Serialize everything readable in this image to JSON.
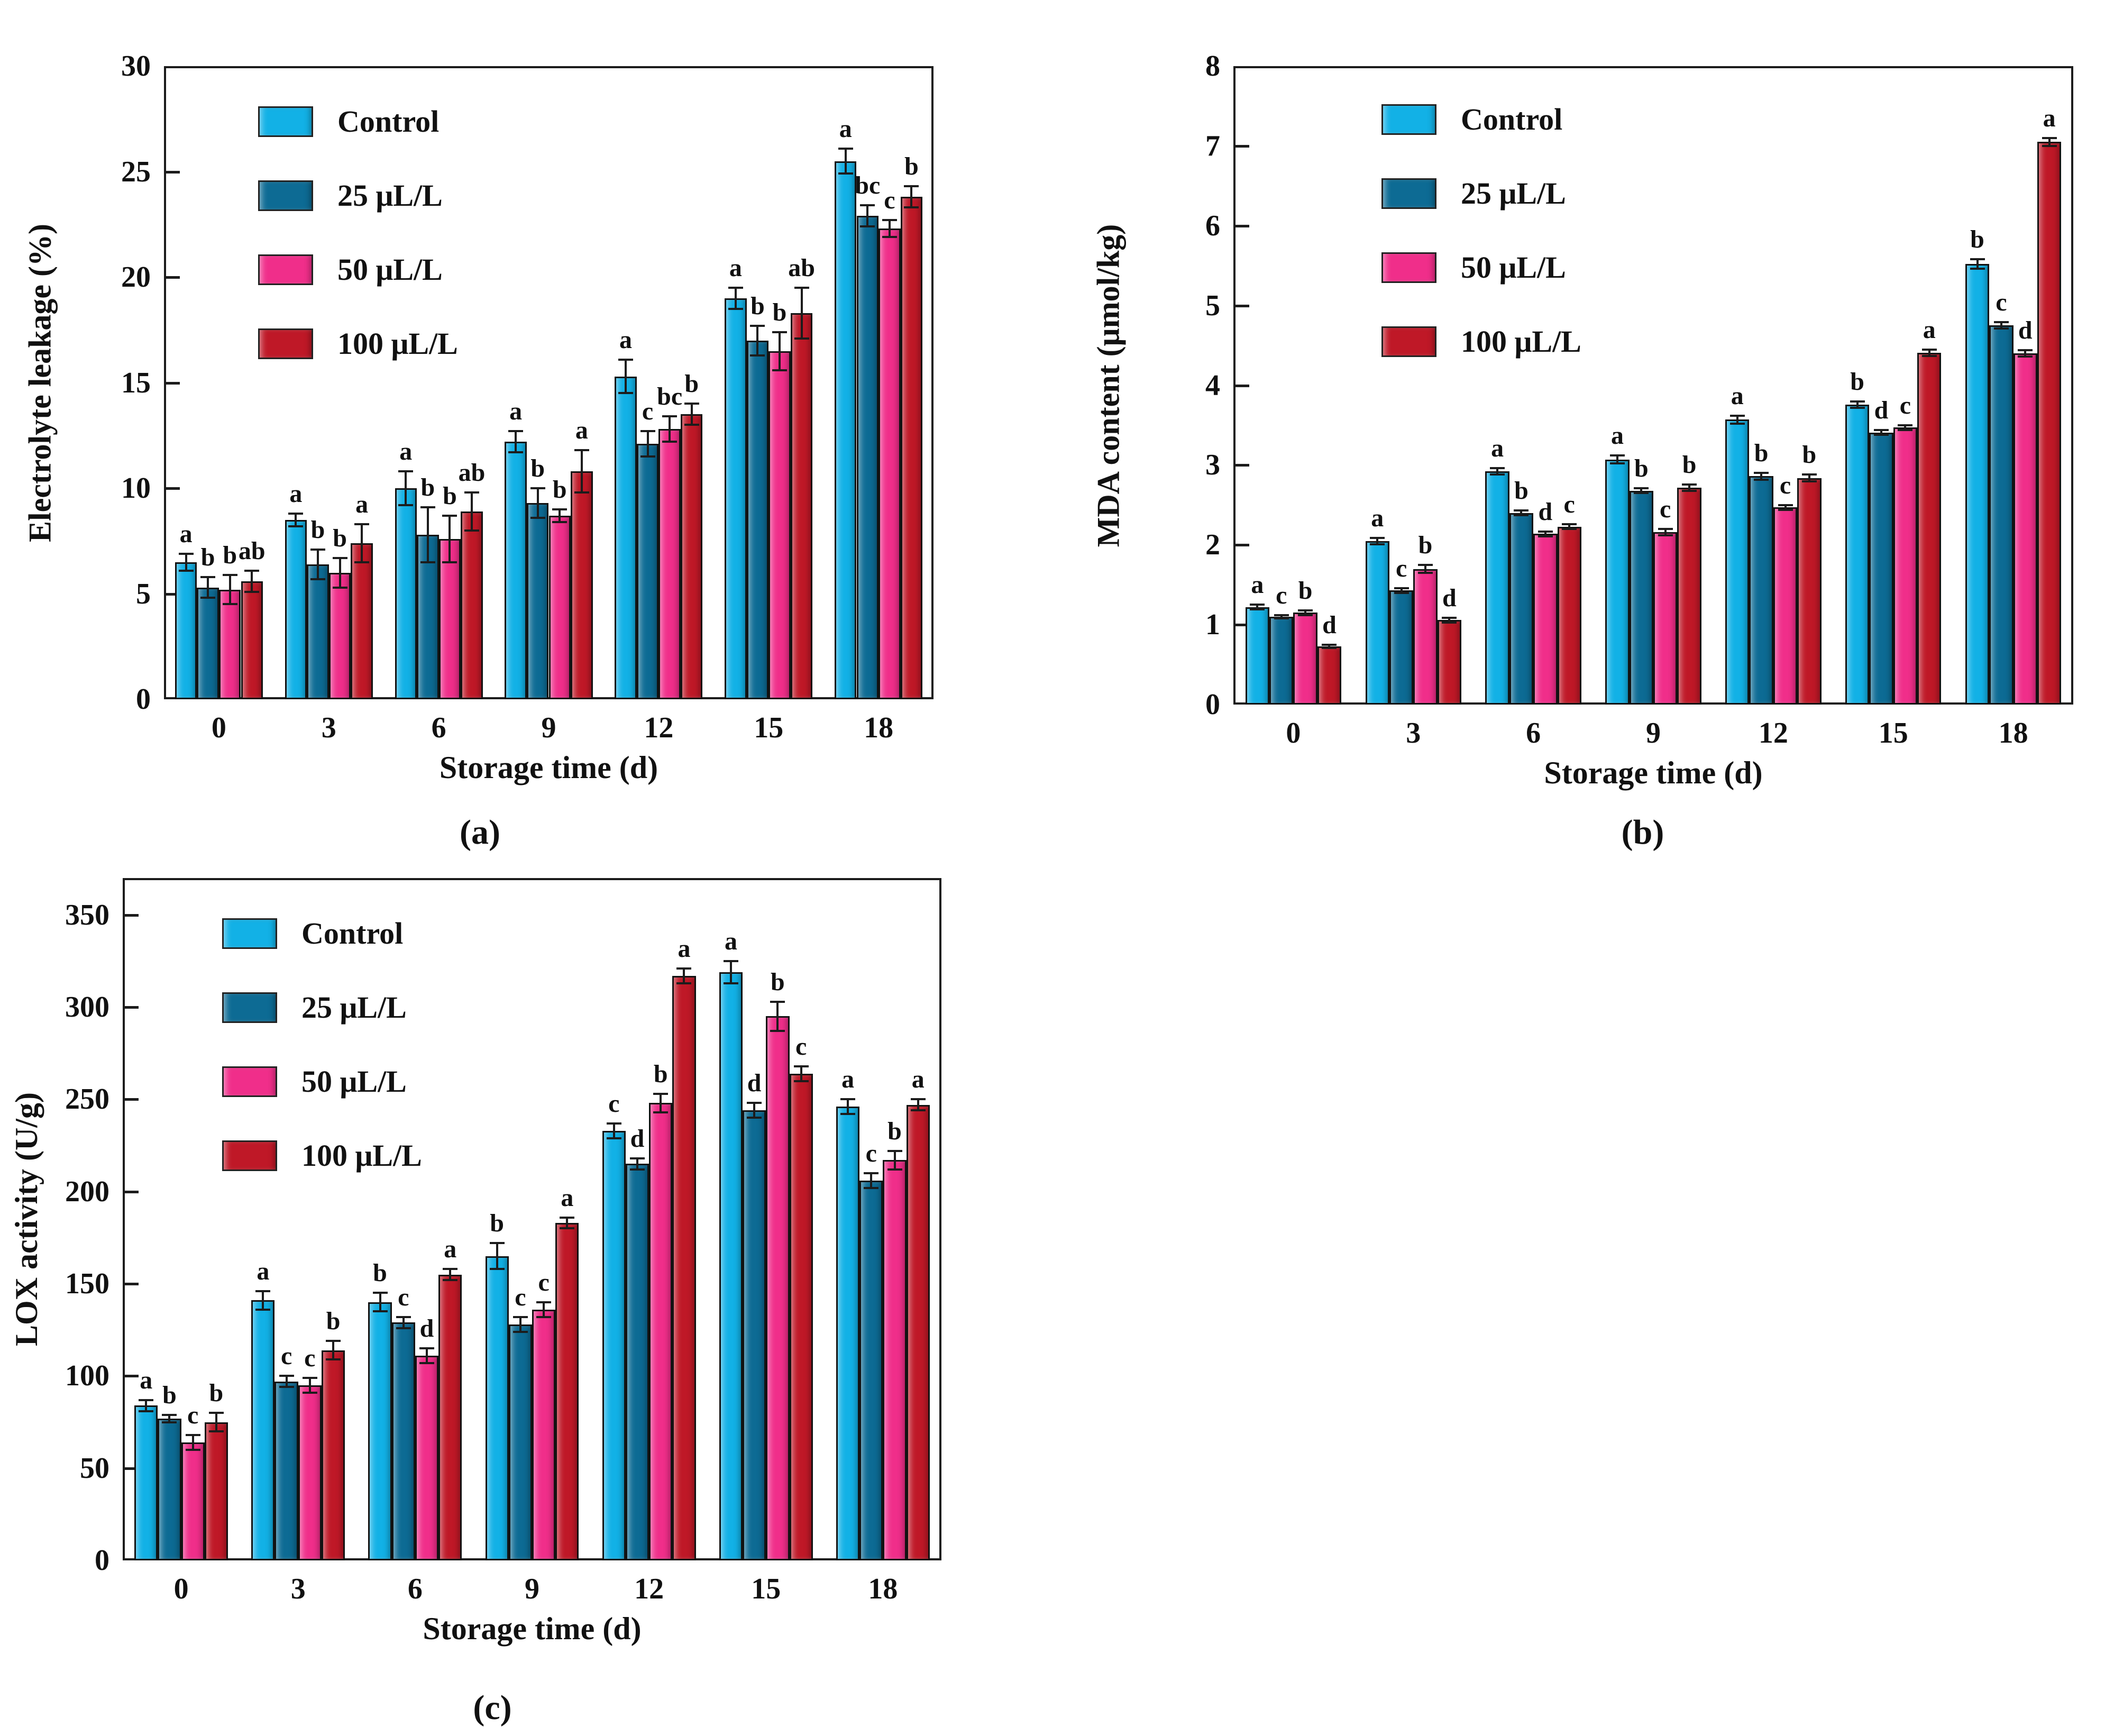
{
  "figure_title": "",
  "chart_data": [
    {
      "id": "a",
      "type": "bar",
      "panel_label": "(a)",
      "xlabel": "Storage time (d)",
      "ylabel": "Electrolyte leakage (%)",
      "ylim": [
        0,
        30
      ],
      "ytick_step": 5,
      "grid": false,
      "legend_position": "top-left",
      "categories": [
        "0",
        "3",
        "6",
        "9",
        "12",
        "15",
        "18"
      ],
      "series": [
        {
          "name": "Control",
          "color": "#12b1e6",
          "values": [
            6.5,
            8.5,
            10.0,
            12.2,
            15.3,
            19.0,
            25.5
          ],
          "errors": [
            0.4,
            0.3,
            0.8,
            0.5,
            0.8,
            0.5,
            0.6
          ],
          "letters": [
            "a",
            "a",
            "a",
            "a",
            "a",
            "a",
            "a"
          ]
        },
        {
          "name": "25 μL/L",
          "color": "#0d6b94",
          "values": [
            5.3,
            6.4,
            7.8,
            9.3,
            12.1,
            17.0,
            22.9
          ],
          "errors": [
            0.5,
            0.7,
            1.3,
            0.7,
            0.6,
            0.7,
            0.5
          ],
          "letters": [
            "b",
            "b",
            "b",
            "b",
            "c",
            "b",
            "bc"
          ]
        },
        {
          "name": "50 μL/L",
          "color": "#f02e8a",
          "values": [
            5.2,
            6.0,
            7.6,
            8.7,
            12.8,
            16.5,
            22.3
          ],
          "errors": [
            0.7,
            0.7,
            1.1,
            0.3,
            0.6,
            0.9,
            0.4
          ],
          "letters": [
            "b",
            "b",
            "b",
            "b",
            "bc",
            "b",
            "c"
          ]
        },
        {
          "name": "100 μL/L",
          "color": "#bf1827",
          "values": [
            5.6,
            7.4,
            8.9,
            10.8,
            13.5,
            18.3,
            23.8
          ],
          "errors": [
            0.5,
            0.9,
            0.9,
            1.0,
            0.5,
            1.2,
            0.5
          ],
          "letters": [
            "ab",
            "a",
            "ab",
            "a",
            "b",
            "ab",
            "b"
          ]
        }
      ]
    },
    {
      "id": "b",
      "type": "bar",
      "panel_label": "(b)",
      "xlabel": "Storage time (d)",
      "ylabel": "MDA content (μmol/kg)",
      "ylim": [
        0,
        8
      ],
      "ytick_step": 1,
      "grid": false,
      "legend_position": "top-left",
      "categories": [
        "0",
        "3",
        "6",
        "9",
        "12",
        "15",
        "18"
      ],
      "series": [
        {
          "name": "Control",
          "color": "#12b1e6",
          "values": [
            1.22,
            2.05,
            2.92,
            3.07,
            3.57,
            3.76,
            5.52
          ],
          "errors": [
            0.03,
            0.04,
            0.04,
            0.05,
            0.05,
            0.04,
            0.06
          ],
          "letters": [
            "a",
            "a",
            "a",
            "a",
            "a",
            "b",
            "b"
          ]
        },
        {
          "name": "25 μL/L",
          "color": "#0d6b94",
          "values": [
            1.1,
            1.43,
            2.4,
            2.68,
            2.86,
            3.41,
            4.75
          ],
          "errors": [
            0.02,
            0.03,
            0.03,
            0.03,
            0.04,
            0.03,
            0.04
          ],
          "letters": [
            "c",
            "c",
            "b",
            "b",
            "b",
            "d",
            "c"
          ]
        },
        {
          "name": "50 μL/L",
          "color": "#f02e8a",
          "values": [
            1.15,
            1.7,
            2.14,
            2.16,
            2.47,
            3.47,
            4.4
          ],
          "errors": [
            0.03,
            0.05,
            0.03,
            0.04,
            0.03,
            0.03,
            0.04
          ],
          "letters": [
            "b",
            "b",
            "d",
            "c",
            "c",
            "c",
            "d"
          ]
        },
        {
          "name": "100 μL/L",
          "color": "#bf1827",
          "values": [
            0.73,
            1.06,
            2.23,
            2.72,
            2.84,
            4.41,
            7.05
          ],
          "errors": [
            0.02,
            0.03,
            0.03,
            0.04,
            0.04,
            0.04,
            0.05
          ],
          "letters": [
            "d",
            "d",
            "c",
            "b",
            "b",
            "a",
            "a"
          ]
        }
      ]
    },
    {
      "id": "c",
      "type": "bar",
      "panel_label": "(c)",
      "xlabel": "Storage time (d)",
      "ylabel": "LOX activity (U/g)",
      "ylim": [
        0,
        370
      ],
      "ytick_step": 50,
      "grid": false,
      "legend_position": "top-left",
      "categories": [
        "0",
        "3",
        "6",
        "9",
        "12",
        "15",
        "18"
      ],
      "series": [
        {
          "name": "Control",
          "color": "#12b1e6",
          "values": [
            84,
            141,
            140,
            165,
            233,
            319,
            246
          ],
          "errors": [
            3,
            5,
            5,
            7,
            4,
            6,
            4
          ],
          "letters": [
            "a",
            "a",
            "b",
            "b",
            "c",
            "a",
            "a"
          ]
        },
        {
          "name": "25 μL/L",
          "color": "#0d6b94",
          "values": [
            77,
            97,
            129,
            128,
            215,
            244,
            206
          ],
          "errors": [
            2,
            3,
            3,
            4,
            3,
            4,
            4
          ],
          "letters": [
            "b",
            "c",
            "c",
            "c",
            "d",
            "d",
            "c"
          ]
        },
        {
          "name": "50 μL/L",
          "color": "#f02e8a",
          "values": [
            64,
            95,
            111,
            136,
            248,
            295,
            217
          ],
          "errors": [
            4,
            4,
            4,
            4,
            5,
            8,
            5
          ],
          "letters": [
            "c",
            "c",
            "d",
            "c",
            "b",
            "b",
            "b"
          ]
        },
        {
          "name": "100 μL/L",
          "color": "#bf1827",
          "values": [
            75,
            114,
            155,
            183,
            317,
            264,
            247
          ],
          "errors": [
            5,
            5,
            3,
            3,
            4,
            4,
            3
          ],
          "letters": [
            "b",
            "b",
            "a",
            "a",
            "a",
            "c",
            "a"
          ]
        }
      ]
    }
  ],
  "legend_labels": [
    "Control",
    "25 μL/L",
    "50 μL/L",
    "100 μL/L"
  ],
  "colors": {
    "control": "#12b1e6",
    "dose_25": "#0d6b94",
    "dose_50": "#f02e8a",
    "dose_100": "#bf1827",
    "axis": "#1c1c1c",
    "background": "#ffffff"
  }
}
